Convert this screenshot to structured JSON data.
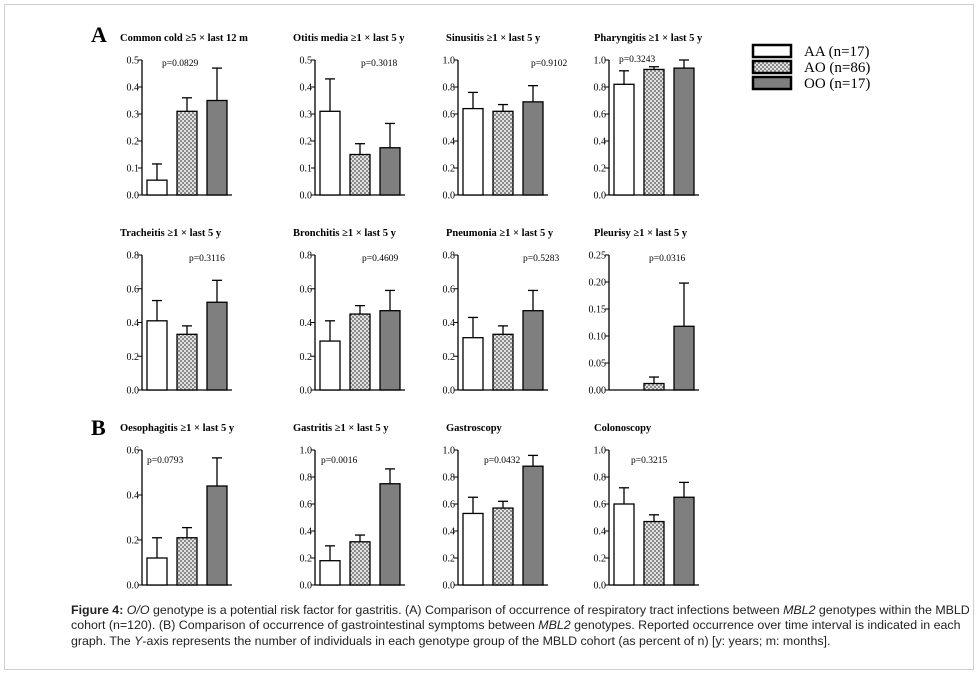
{
  "panels": [
    {
      "letter": "A"
    },
    {
      "letter": "B"
    }
  ],
  "legend": {
    "entries": [
      {
        "label": "AA (n=17)",
        "pattern": "white"
      },
      {
        "label": "AO (n=86)",
        "pattern": "checker"
      },
      {
        "label": "OO (n=17)",
        "pattern": "gray"
      }
    ]
  },
  "colors": {
    "white_bar": "#ffffff",
    "gray_bar": "#7f7f7f",
    "checker_light": "#e2e2e2",
    "checker_dark": "#8a8a8a",
    "axis": "#000000"
  },
  "chart_data": [
    {
      "type": "bar",
      "title": "Common cold  ≥5 × last 12 m",
      "categories": [
        "AA",
        "AO",
        "OO"
      ],
      "values": [
        0.055,
        0.31,
        0.35
      ],
      "errors": [
        0.06,
        0.05,
        0.12
      ],
      "p": "p=0.0829",
      "ylim": [
        0,
        0.5
      ],
      "yticks": [
        "0.0",
        "0.1",
        "0.2",
        "0.3",
        "0.4",
        "0.5"
      ]
    },
    {
      "type": "bar",
      "title": "Otitis media  ≥1 × last 5 y",
      "categories": [
        "AA",
        "AO",
        "OO"
      ],
      "values": [
        0.31,
        0.15,
        0.175
      ],
      "errors": [
        0.12,
        0.04,
        0.09
      ],
      "p": "p=0.3018",
      "ylim": [
        0,
        0.5
      ],
      "yticks": [
        "0.0",
        "0.1",
        "0.2",
        "0.3",
        "0.4",
        "0.5"
      ]
    },
    {
      "type": "bar",
      "title": "Sinusitis  ≥1 × last 5 y",
      "categories": [
        "AA",
        "AO",
        "OO"
      ],
      "values": [
        0.64,
        0.62,
        0.69
      ],
      "errors": [
        0.12,
        0.05,
        0.12
      ],
      "p": "p=0.9102",
      "ylim": [
        0,
        1.0
      ],
      "yticks": [
        "0.0",
        "0.2",
        "0.4",
        "0.6",
        "0.8",
        "1.0"
      ]
    },
    {
      "type": "bar",
      "title": "Pharyngitis  ≥1 × last 5 y",
      "categories": [
        "AA",
        "AO",
        "OO"
      ],
      "values": [
        0.82,
        0.93,
        0.94
      ],
      "errors": [
        0.1,
        0.02,
        0.06
      ],
      "p": "p=0.3243",
      "ylim": [
        0,
        1.0
      ],
      "yticks": [
        "0.0",
        "0.2",
        "0.4",
        "0.6",
        "0.8",
        "1.0"
      ]
    },
    {
      "type": "bar",
      "title": "Tracheitis  ≥1 × last 5 y",
      "categories": [
        "AA",
        "AO",
        "OO"
      ],
      "values": [
        0.41,
        0.33,
        0.52
      ],
      "errors": [
        0.12,
        0.05,
        0.13
      ],
      "p": "p=0.3116",
      "ylim": [
        0,
        0.8
      ],
      "yticks": [
        "0.0",
        "0.2",
        "0.4",
        "0.6",
        "0.8"
      ]
    },
    {
      "type": "bar",
      "title": "Bronchitis  ≥1 × last 5 y",
      "categories": [
        "AA",
        "AO",
        "OO"
      ],
      "values": [
        0.29,
        0.45,
        0.47
      ],
      "errors": [
        0.12,
        0.05,
        0.12
      ],
      "p": "p=0.4609",
      "ylim": [
        0,
        0.8
      ],
      "yticks": [
        "0.0",
        "0.2",
        "0.4",
        "0.6",
        "0.8"
      ]
    },
    {
      "type": "bar",
      "title": "Pneumonia  ≥1 × last 5 y",
      "categories": [
        "AA",
        "AO",
        "OO"
      ],
      "values": [
        0.31,
        0.33,
        0.47
      ],
      "errors": [
        0.12,
        0.05,
        0.12
      ],
      "p": "p=0.5283",
      "ylim": [
        0,
        0.8
      ],
      "yticks": [
        "0.0",
        "0.2",
        "0.4",
        "0.6",
        "0.8"
      ]
    },
    {
      "type": "bar",
      "title": "Pleurisy  ≥1 × last 5 y",
      "categories": [
        "AA",
        "AO",
        "OO"
      ],
      "values": [
        0.0,
        0.012,
        0.118
      ],
      "errors": [
        0.0,
        0.012,
        0.08
      ],
      "p": "p=0.0316",
      "ylim": [
        0,
        0.25
      ],
      "yticks": [
        "0.00",
        "0.05",
        "0.10",
        "0.15",
        "0.20",
        "0.25"
      ]
    },
    {
      "type": "bar",
      "title": "Oesophagitis  ≥1 × last 5 y",
      "categories": [
        "AA",
        "AO",
        "OO"
      ],
      "values": [
        0.12,
        0.21,
        0.44
      ],
      "errors": [
        0.09,
        0.045,
        0.125
      ],
      "p": "p=0.0793",
      "ylim": [
        0,
        0.6
      ],
      "yticks": [
        "0.0",
        "0.2",
        "0.4",
        "0.6"
      ]
    },
    {
      "type": "bar",
      "title": "Gastritis  ≥1 × last 5 y",
      "categories": [
        "AA",
        "AO",
        "OO"
      ],
      "values": [
        0.18,
        0.32,
        0.75
      ],
      "errors": [
        0.11,
        0.05,
        0.11
      ],
      "p": "p=0.0016",
      "ylim": [
        0,
        1.0
      ],
      "yticks": [
        "0.0",
        "0.2",
        "0.4",
        "0.6",
        "0.8",
        "1.0"
      ]
    },
    {
      "type": "bar",
      "title": "Gastroscopy",
      "categories": [
        "AA",
        "AO",
        "OO"
      ],
      "values": [
        0.53,
        0.57,
        0.88
      ],
      "errors": [
        0.12,
        0.05,
        0.08
      ],
      "p": "p=0.0432",
      "ylim": [
        0,
        1.0
      ],
      "yticks": [
        "0.0",
        "0.2",
        "0.4",
        "0.6",
        "0.8",
        "1.0"
      ]
    },
    {
      "type": "bar",
      "title": "Colonoscopy",
      "categories": [
        "AA",
        "AO",
        "OO"
      ],
      "values": [
        0.6,
        0.47,
        0.65
      ],
      "errors": [
        0.12,
        0.05,
        0.11
      ],
      "p": "p=0.3215",
      "ylim": [
        0,
        1.0
      ],
      "yticks": [
        "0.0",
        "0.2",
        "0.4",
        "0.6",
        "0.8",
        "1.0"
      ]
    }
  ],
  "caption": {
    "label": "Figure 4:",
    "t1": "O/O",
    "t2": " genotype is a potential risk factor for gastritis. (A) Comparison of occurrence of respiratory tract infections between ",
    "t3": "MBL2",
    "t4": " genotypes within the MBLD cohort (n=120). (B) Comparison of occurrence of gastrointestinal symptoms between ",
    "t5": "MBL2",
    "t6": " genotypes. Reported occurrence over time interval is indicated in each graph. The ",
    "t7": "Y",
    "t8": "-axis represents the number of individuals in each genotype group of the MBLD cohort (as percent of n) [y: years; m: months]."
  }
}
